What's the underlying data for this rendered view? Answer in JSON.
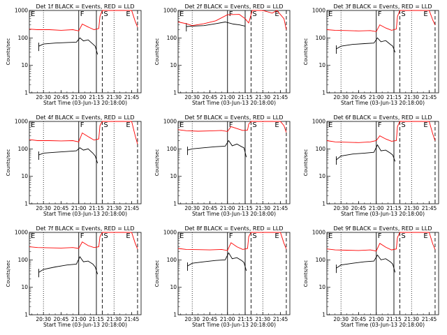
{
  "chart_data": {
    "type": "line",
    "y_scale": "log",
    "ylim": [
      1,
      1000
    ],
    "ylabel": "Counts/sec",
    "xlabel": "Start Time (03-Jun-13 20:18:00)",
    "x_tick_labels": [
      "20:30",
      "20:45",
      "21:00",
      "21:15",
      "21:30",
      "21:45"
    ],
    "y_tick_labels": [
      "1",
      "10",
      "100",
      "1000"
    ],
    "colors": {
      "events": "#000000",
      "lld": "#ff0000"
    },
    "region_labels": [
      "E",
      "F",
      "S",
      "E"
    ],
    "panels": [
      {
        "title": "Det 1f BLACK = Events, RED = LLD",
        "series": [
          {
            "color": "events",
            "x": [
              "20:26",
              "20:30",
              "20:40",
              "20:50",
              "20:58",
              "21:01",
              "21:04",
              "21:08",
              "21:12",
              "21:14",
              "21:16"
            ],
            "y": [
              50,
              60,
              65,
              68,
              70,
              100,
              78,
              85,
              60,
              50,
              25
            ]
          },
          {
            "color": "lld",
            "x": [
              "20:18",
              "20:25",
              "20:35",
              "20:45",
              "20:55",
              "21:00",
              "21:03",
              "21:08",
              "21:13",
              "21:17",
              "21:18",
              "21:20",
              "21:40",
              "21:45",
              "21:48",
              "21:50"
            ],
            "y": [
              210,
              200,
              200,
              190,
              200,
              180,
              320,
              250,
              200,
              220,
              600,
              1000,
              1000,
              1000,
              400,
              250
            ]
          }
        ]
      },
      {
        "title": "Det 2f BLACK = Events, RED = LLD",
        "series": [
          {
            "color": "events",
            "x": [
              "20:25",
              "20:30",
              "20:40",
              "20:50",
              "20:58",
              "21:05",
              "21:10",
              "21:15"
            ],
            "y": [
              260,
              270,
              280,
              330,
              380,
              320,
              300,
              270
            ]
          },
          {
            "color": "lld",
            "x": [
              "20:18",
              "20:25",
              "20:30",
              "20:40",
              "20:50",
              "21:00",
              "21:10",
              "21:15",
              "21:18",
              "21:21",
              "21:30",
              "21:38",
              "21:42",
              "21:48",
              "21:50"
            ],
            "y": [
              380,
              330,
              280,
              330,
              420,
              700,
              720,
              500,
              350,
              1000,
              1000,
              800,
              1000,
              500,
              200
            ]
          }
        ]
      },
      {
        "title": "Det 3f BLACK = Events, RED = LLD",
        "series": [
          {
            "color": "events",
            "x": [
              "20:26",
              "20:30",
              "20:40",
              "20:50",
              "20:58",
              "21:01",
              "21:04",
              "21:08",
              "21:12",
              "21:14",
              "21:16"
            ],
            "y": [
              40,
              50,
              58,
              62,
              65,
              100,
              72,
              80,
              58,
              50,
              30
            ]
          },
          {
            "color": "lld",
            "x": [
              "20:18",
              "20:25",
              "20:35",
              "20:45",
              "20:55",
              "21:00",
              "21:03",
              "21:08",
              "21:13",
              "21:17",
              "21:18",
              "21:20",
              "21:40",
              "21:45",
              "21:48",
              "21:50"
            ],
            "y": [
              200,
              190,
              185,
              180,
              185,
              170,
              300,
              230,
              190,
              210,
              600,
              1000,
              1000,
              1000,
              450,
              300
            ]
          }
        ]
      },
      {
        "title": "Det 4f BLACK = Events, RED = LLD",
        "series": [
          {
            "color": "events",
            "x": [
              "20:26",
              "20:30",
              "20:40",
              "20:50",
              "20:58",
              "21:01",
              "21:04",
              "21:08",
              "21:12",
              "21:14",
              "21:16"
            ],
            "y": [
              60,
              70,
              75,
              80,
              85,
              110,
              90,
              100,
              70,
              55,
              30
            ]
          },
          {
            "color": "lld",
            "x": [
              "20:18",
              "20:25",
              "20:35",
              "20:45",
              "20:55",
              "21:00",
              "21:03",
              "21:08",
              "21:13",
              "21:17",
              "21:18",
              "21:20",
              "21:40",
              "21:45",
              "21:48",
              "21:50"
            ],
            "y": [
              220,
              200,
              200,
              195,
              200,
              180,
              380,
              280,
              210,
              230,
              700,
              1000,
              1000,
              1000,
              300,
              150
            ]
          }
        ]
      },
      {
        "title": "Det 5f BLACK = Events, RED = LLD",
        "series": [
          {
            "color": "events",
            "x": [
              "20:26",
              "20:30",
              "20:40",
              "20:50",
              "20:58",
              "21:01",
              "21:04",
              "21:08",
              "21:12",
              "21:14",
              "21:16"
            ],
            "y": [
              90,
              100,
              110,
              120,
              125,
              200,
              130,
              150,
              120,
              110,
              50
            ]
          },
          {
            "color": "lld",
            "x": [
              "20:18",
              "20:25",
              "20:35",
              "20:45",
              "20:55",
              "21:00",
              "21:03",
              "21:08",
              "21:13",
              "21:17",
              "21:18",
              "21:20",
              "21:40",
              "21:45",
              "21:48",
              "21:50"
            ],
            "y": [
              500,
              460,
              440,
              450,
              470,
              430,
              650,
              550,
              470,
              480,
              800,
              1000,
              1000,
              1000,
              700,
              400
            ]
          }
        ]
      },
      {
        "title": "Det 6f BLACK = Events, RED = LLD",
        "series": [
          {
            "color": "events",
            "x": [
              "20:26",
              "20:30",
              "20:40",
              "20:50",
              "20:58",
              "21:01",
              "21:04",
              "21:08",
              "21:12",
              "21:14",
              "21:16"
            ],
            "y": [
              40,
              55,
              65,
              70,
              75,
              140,
              85,
              90,
              70,
              60,
              35
            ]
          },
          {
            "color": "lld",
            "x": [
              "20:18",
              "20:25",
              "20:35",
              "20:45",
              "20:55",
              "21:00",
              "21:03",
              "21:08",
              "21:13",
              "21:17",
              "21:18",
              "21:20",
              "21:40",
              "21:45",
              "21:48",
              "21:50"
            ],
            "y": [
              200,
              180,
              175,
              170,
              180,
              200,
              300,
              230,
              190,
              200,
              650,
              1000,
              1000,
              1000,
              350,
              200
            ]
          }
        ]
      },
      {
        "title": "Det 7f BLACK = Events, RED = LLD",
        "series": [
          {
            "color": "events",
            "x": [
              "20:26",
              "20:30",
              "20:40",
              "20:50",
              "20:58",
              "21:01",
              "21:04",
              "21:08",
              "21:12",
              "21:14",
              "21:16"
            ],
            "y": [
              35,
              45,
              55,
              65,
              70,
              130,
              85,
              90,
              70,
              55,
              30
            ]
          },
          {
            "color": "lld",
            "x": [
              "20:18",
              "20:25",
              "20:35",
              "20:45",
              "20:55",
              "21:00",
              "21:03",
              "21:08",
              "21:13",
              "21:17",
              "21:18",
              "21:20",
              "21:40",
              "21:45",
              "21:48",
              "21:50"
            ],
            "y": [
              300,
              280,
              275,
              270,
              280,
              260,
              450,
              330,
              280,
              300,
              700,
              1000,
              1000,
              1000,
              400,
              250
            ]
          }
        ]
      },
      {
        "title": "Det 8f BLACK = Events, RED = LLD",
        "series": [
          {
            "color": "events",
            "x": [
              "20:26",
              "20:30",
              "20:40",
              "20:50",
              "20:58",
              "21:01",
              "21:04",
              "21:08",
              "21:12",
              "21:14",
              "21:16"
            ],
            "y": [
              60,
              75,
              85,
              95,
              100,
              180,
              110,
              120,
              95,
              80,
              40
            ]
          },
          {
            "color": "lld",
            "x": [
              "20:18",
              "20:25",
              "20:35",
              "20:45",
              "20:55",
              "21:00",
              "21:03",
              "21:08",
              "21:13",
              "21:17",
              "21:18",
              "21:20",
              "21:40",
              "21:45",
              "21:48",
              "21:50"
            ],
            "y": [
              260,
              240,
              235,
              230,
              240,
              220,
              420,
              300,
              240,
              260,
              700,
              1000,
              1000,
              1000,
              400,
              250
            ]
          }
        ]
      },
      {
        "title": "Det 9f BLACK = Events, RED = LLD",
        "series": [
          {
            "color": "events",
            "x": [
              "20:26",
              "20:30",
              "20:40",
              "20:50",
              "20:58",
              "21:01",
              "21:04",
              "21:08",
              "21:12",
              "21:14",
              "21:16"
            ],
            "y": [
              50,
              65,
              75,
              85,
              90,
              150,
              100,
              110,
              85,
              70,
              35
            ]
          },
          {
            "color": "lld",
            "x": [
              "20:18",
              "20:25",
              "20:35",
              "20:45",
              "20:55",
              "21:00",
              "21:03",
              "21:08",
              "21:13",
              "21:17",
              "21:18",
              "21:20",
              "21:40",
              "21:45",
              "21:48",
              "21:50"
            ],
            "y": [
              250,
              230,
              225,
              220,
              230,
              210,
              400,
              290,
              230,
              250,
              650,
              1000,
              1000,
              1000,
              380,
              240
            ]
          }
        ]
      }
    ]
  }
}
